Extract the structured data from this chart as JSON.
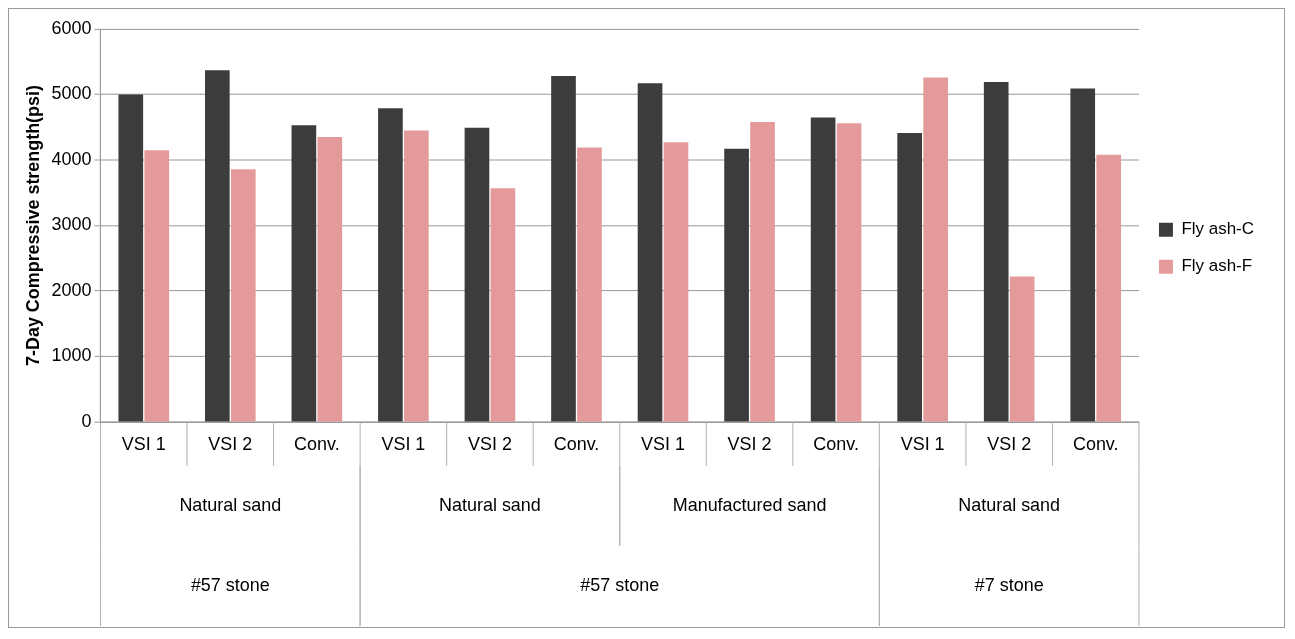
{
  "chart_data": {
    "type": "bar",
    "ylabel": "7-Day Compressive strength(psi)",
    "categories": [
      "VSI 1",
      "VSI 2",
      "Conv.",
      "VSI 1",
      "VSI 2",
      "Conv.",
      "VSI 1",
      "VSI 2",
      "Conv.",
      "VSI 1",
      "VSI 2",
      "Conv."
    ],
    "series": [
      {
        "name": "Fly ash-C",
        "color": "#3c3c3c",
        "values": [
          5000,
          5370,
          4530,
          4790,
          4490,
          5280,
          5170,
          4170,
          4650,
          4410,
          5190,
          5090
        ]
      },
      {
        "name": "Fly ash-F",
        "color": "#e49a9a",
        "values": [
          4150,
          3860,
          4350,
          4450,
          3570,
          4190,
          4270,
          4580,
          4560,
          5260,
          2220,
          4080
        ]
      }
    ],
    "ylim": [
      0,
      6000
    ],
    "yticks": [
      0,
      1000,
      2000,
      3000,
      4000,
      5000,
      6000
    ],
    "grid": "y",
    "legend": "right",
    "annotations": [
      "Natural sand",
      "Natural sand",
      "Manufactured sand",
      "Natural sand",
      "#57 stone",
      "#57 stone",
      "#7 stone"
    ]
  }
}
